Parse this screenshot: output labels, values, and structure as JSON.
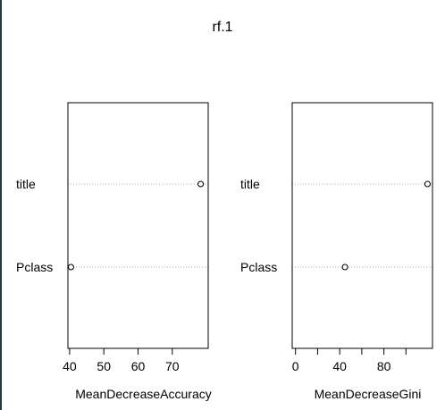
{
  "chart_data": {
    "title": "rf.1",
    "type": "dotchart",
    "variables": [
      "title",
      "Pclass"
    ],
    "panels": [
      {
        "xlabel": "MeanDecreaseAccuracy",
        "xlim": [
          39.5,
          80.5
        ],
        "ticks": [
          40,
          50,
          60,
          70
        ],
        "values": {
          "title": 78.3,
          "Pclass": 40.4
        }
      },
      {
        "xlabel": "MeanDecreaseGini",
        "xlim": [
          -3,
          124
        ],
        "ticks": [
          0,
          20,
          40,
          60,
          80,
          100
        ],
        "tick_labels": [
          "0",
          "",
          "40",
          "",
          "80",
          ""
        ],
        "values": {
          "title": 119.5,
          "Pclass": 44.8
        }
      }
    ]
  }
}
